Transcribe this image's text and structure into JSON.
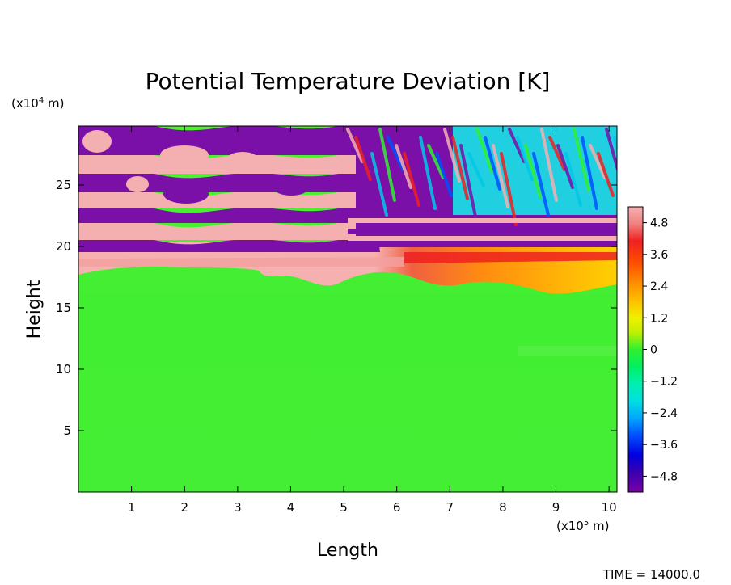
{
  "chart_data": {
    "type": "heatmap",
    "title": "Potential Temperature Deviation [K]",
    "xlabel": "Length",
    "ylabel": "Height",
    "x_unit_base": "(x10",
    "x_unit_exp": "5",
    "x_unit_tail": " m)",
    "y_unit_base": "(x10",
    "y_unit_exp": "4",
    "y_unit_tail": " m)",
    "x_ticks": [
      "1",
      "2",
      "3",
      "4",
      "5",
      "6",
      "7",
      "8",
      "9",
      "10"
    ],
    "x_tick_values": [
      1,
      2,
      3,
      4,
      5,
      6,
      7,
      8,
      9,
      10
    ],
    "y_ticks": [
      "5",
      "10",
      "15",
      "20",
      "25"
    ],
    "y_tick_values": [
      5,
      10,
      15,
      20,
      25
    ],
    "xlim": [
      0,
      10.15
    ],
    "ylim": [
      0,
      29.8
    ],
    "colorbar": {
      "labels": [
        "4.8",
        "3.6",
        "2.4",
        "1.2",
        "0",
        "−1.2",
        "−2.4",
        "−3.6",
        "−4.8"
      ],
      "values": [
        4.8,
        3.6,
        2.4,
        1.2,
        0,
        -1.2,
        -2.4,
        -3.6,
        -4.8
      ],
      "range": [
        -5.4,
        5.4
      ],
      "colors": [
        "#7a00a8",
        "#3a00b0",
        "#0000e0",
        "#0050ff",
        "#00a8ff",
        "#00e0e0",
        "#00f0b0",
        "#00f060",
        "#30f030",
        "#80f020",
        "#c0f000",
        "#f0f000",
        "#ffc000",
        "#ff9000",
        "#ff5000",
        "#f02020",
        "#f08080",
        "#f8b0b0"
      ]
    },
    "footer": "TIME = 14000.0",
    "regions_note": "Bottom ~0-18.5: near-zero (green). ~18.5-20: positive deviation band (pink/red left, orange/yellow right). ~20-30: alternating strongly positive/negative layers (pink/purple) on left, tilted wave pattern with mixed values on right."
  }
}
